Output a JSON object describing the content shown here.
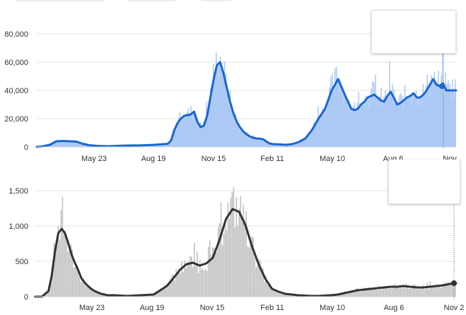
{
  "top_tabs": [
    "",
    "",
    ""
  ],
  "chart_data": [
    {
      "type": "bar+line",
      "title": "",
      "x_labels": [
        "May 23",
        "Aug 19",
        "Nov 15",
        "Feb 11",
        "May 10",
        "Aug 6",
        "Nov"
      ],
      "y_ticks": [
        "0",
        "20,000",
        "40,000",
        "60,000",
        "80,000"
      ],
      "ylim": [
        0,
        85000
      ],
      "series": [
        {
          "role": "average-line",
          "color": "#1a66d2",
          "x": [
            0,
            10,
            20,
            30,
            40,
            50,
            60,
            65,
            70,
            75,
            80,
            85,
            90,
            95,
            100,
            110,
            120,
            130,
            140,
            160,
            180,
            200,
            205,
            210,
            215,
            220,
            225,
            230,
            235,
            240,
            245,
            250,
            255,
            260,
            265,
            270,
            275,
            280,
            285,
            290,
            295,
            300,
            305,
            310,
            315,
            320,
            325,
            330,
            335,
            340,
            345,
            350,
            355,
            360,
            370,
            380,
            390,
            400,
            410,
            420,
            430,
            440,
            450,
            460,
            470,
            480,
            485,
            490,
            495,
            500,
            505,
            510,
            515,
            520,
            525,
            530,
            535,
            540,
            545,
            550,
            555,
            560,
            565,
            570,
            575,
            580,
            585,
            590,
            595,
            600,
            605,
            610,
            615,
            620,
            625,
            630,
            635,
            640
          ],
          "values": [
            0,
            500,
            1500,
            4000,
            4200,
            4000,
            3800,
            3000,
            2200,
            1800,
            1200,
            1000,
            800,
            700,
            600,
            500,
            700,
            900,
            1000,
            1100,
            1500,
            2200,
            4500,
            12000,
            17000,
            20000,
            22000,
            22500,
            23000,
            25000,
            18000,
            14000,
            15000,
            22000,
            35000,
            48000,
            58000,
            60000,
            52000,
            42000,
            32000,
            24000,
            18000,
            14000,
            11000,
            9000,
            7500,
            6500,
            6000,
            5800,
            5500,
            4000,
            2500,
            2000,
            1800,
            1500,
            2000,
            3500,
            6000,
            12000,
            20000,
            27000,
            40000,
            48000,
            37000,
            27000,
            26000,
            27000,
            30000,
            32000,
            35000,
            36000,
            37000,
            35000,
            33000,
            32000,
            36000,
            39000,
            35000,
            30000,
            31000,
            33000,
            35000,
            36000,
            38000,
            35000,
            35000,
            37000,
            40000,
            44000,
            48000,
            44000,
            43000,
            45000,
            40000,
            40000,
            40000,
            40000
          ]
        }
      ],
      "cursor_label": "Nov"
    },
    {
      "type": "bar+line",
      "title": "",
      "x_labels": [
        "May 23",
        "Aug 19",
        "Nov 15",
        "Feb 11",
        "May 10",
        "Aug 6",
        "Nov 2"
      ],
      "y_ticks": [
        "0",
        "500",
        "1,000",
        "1,500"
      ],
      "ylim": [
        0,
        1700
      ],
      "series": [
        {
          "role": "average-line",
          "color": "#333333",
          "x": [
            0,
            10,
            20,
            25,
            30,
            35,
            40,
            45,
            50,
            55,
            60,
            65,
            70,
            75,
            80,
            85,
            90,
            95,
            100,
            110,
            120,
            130,
            140,
            160,
            180,
            200,
            210,
            220,
            230,
            240,
            250,
            260,
            270,
            280,
            290,
            300,
            310,
            320,
            330,
            340,
            350,
            360,
            370,
            380,
            390,
            400,
            410,
            420,
            430,
            440,
            450,
            460,
            470,
            480,
            490,
            500,
            510,
            520,
            530,
            540,
            550,
            560,
            570,
            580,
            590,
            600,
            610,
            620,
            630,
            640
          ],
          "values": [
            0,
            0,
            80,
            300,
            650,
            900,
            960,
            900,
            760,
            600,
            480,
            380,
            260,
            200,
            150,
            110,
            80,
            60,
            40,
            20,
            20,
            15,
            10,
            20,
            30,
            150,
            260,
            380,
            460,
            480,
            440,
            470,
            550,
            800,
            1100,
            1240,
            1200,
            1000,
            700,
            450,
            250,
            110,
            70,
            40,
            30,
            20,
            15,
            10,
            10,
            15,
            20,
            30,
            50,
            70,
            90,
            100,
            110,
            120,
            130,
            140,
            140,
            150,
            140,
            130,
            130,
            140,
            150,
            160,
            180,
            190
          ]
        }
      ],
      "cursor_label": "Nov 2"
    }
  ]
}
